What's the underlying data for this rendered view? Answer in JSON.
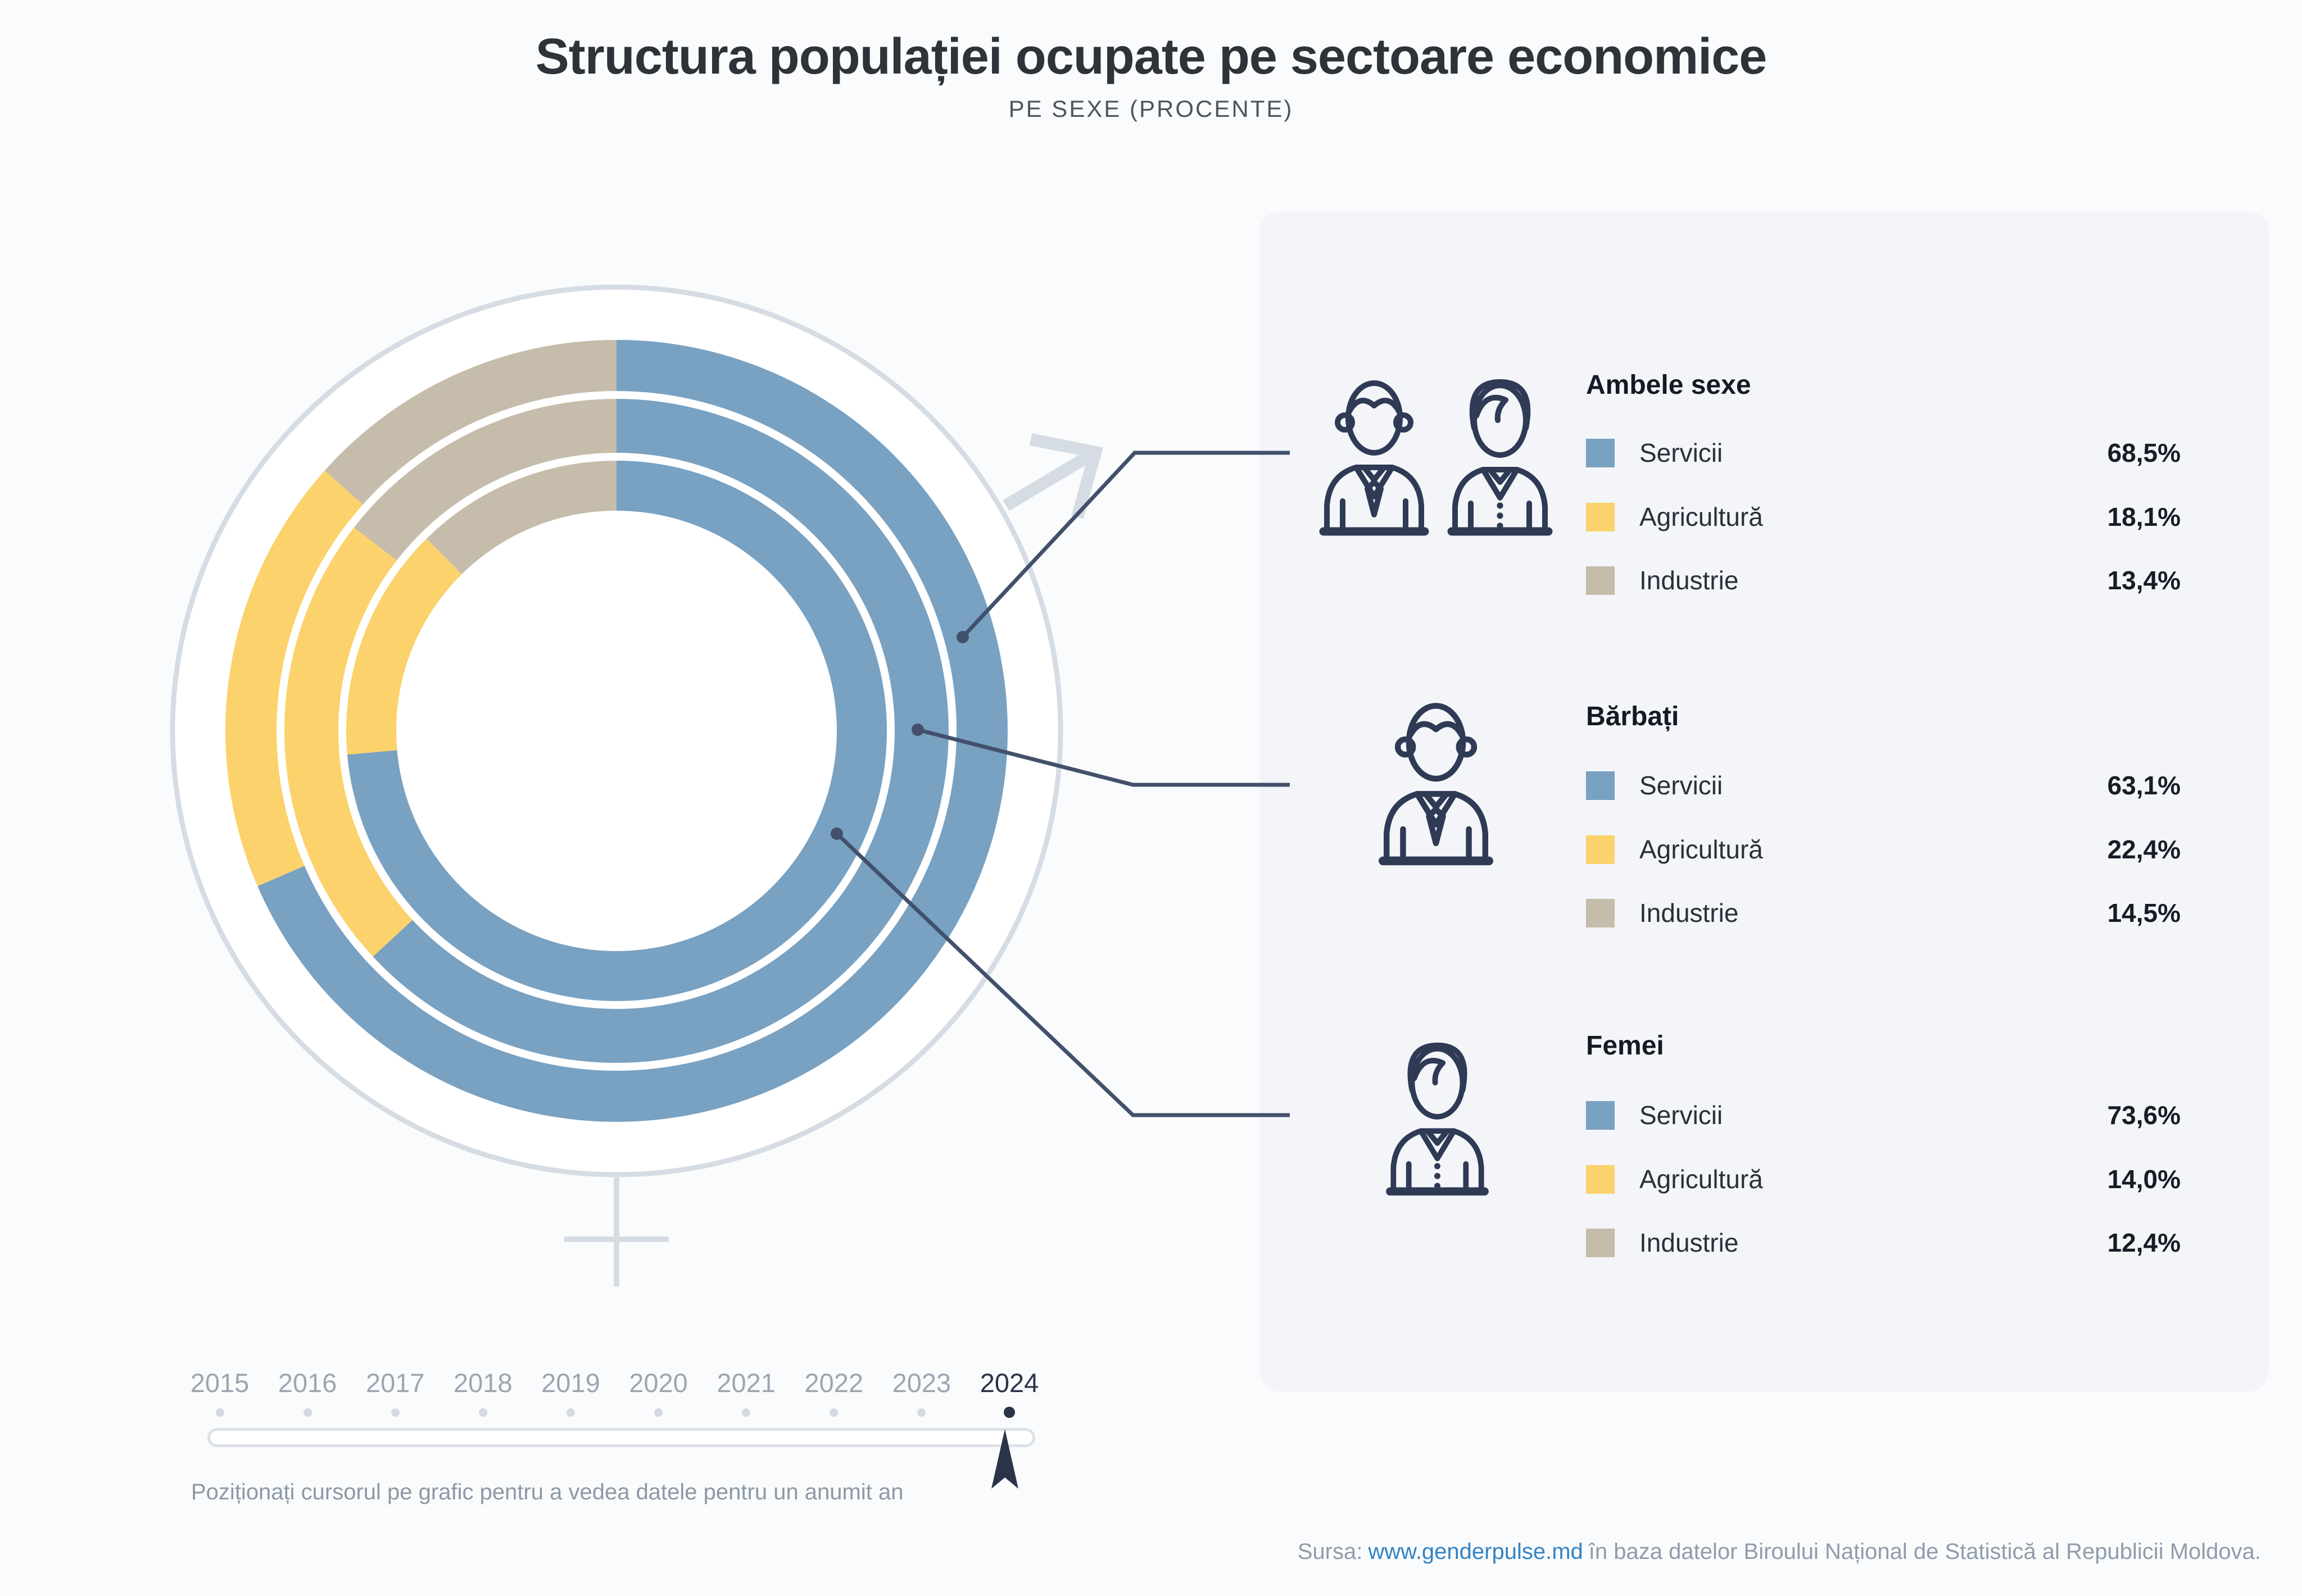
{
  "page": {
    "title": "Structura populației ocupate pe sectoare economice",
    "subtitle": "PE SEXE (PROCENTE)",
    "colors": {
      "background": "#fafbfc",
      "panel_background": "#f3f5f8",
      "navy": "#2f3a55",
      "callout": "#42506b",
      "faint_symbol": "#d6dce4",
      "link_blue": "#3383c4",
      "muted_text": "#9ba6b2"
    },
    "icons": {
      "ambele_sexe": "man-woman-pair-outline",
      "barbati": "man-bust-outline",
      "femei": "woman-bust-outline"
    }
  },
  "chart_data": {
    "type": "donut-multi-ring",
    "title": "Structura populației ocupate pe sectoare economice",
    "subtitle": "PE SEXE (PROCENTE)",
    "unit": "%",
    "start_angle": "top",
    "direction": "clockwise",
    "legend_position": "right",
    "sectors": [
      {
        "label": "Servicii",
        "color": "#78a1c2"
      },
      {
        "label": "Agricultură",
        "color": "#fbd26b"
      },
      {
        "label": "Industrie",
        "color": "#c6bcab"
      }
    ],
    "series": [
      {
        "name": "Ambele sexe",
        "ring": "outer",
        "values": [
          68.5,
          18.1,
          13.4
        ],
        "display_values": [
          "68,5%",
          "18,1%",
          "13,4%"
        ]
      },
      {
        "name": "Bărbați",
        "ring": "middle",
        "values": [
          63.1,
          22.4,
          14.5
        ],
        "display_values": [
          "63,1%",
          "22,4%",
          "14,5%"
        ]
      },
      {
        "name": "Femei",
        "ring": "inner",
        "values": [
          73.6,
          14.0,
          12.4
        ],
        "display_values": [
          "73,6%",
          "14,0%",
          "12,4%"
        ]
      }
    ],
    "selected_year": "2024"
  },
  "timeline": {
    "years": [
      "2015",
      "2016",
      "2017",
      "2018",
      "2019",
      "2020",
      "2021",
      "2022",
      "2023",
      "2024"
    ],
    "selected": "2024",
    "instruction": "Poziționați cursorul pe grafic pentru a vedea datele pentru un anumit an"
  },
  "footer": {
    "source_prefix": "Sursa:",
    "source_link": "www.genderpulse.md",
    "source_suffix": "în baza datelor Biroului Național de Statistică al Republicii Moldova."
  }
}
